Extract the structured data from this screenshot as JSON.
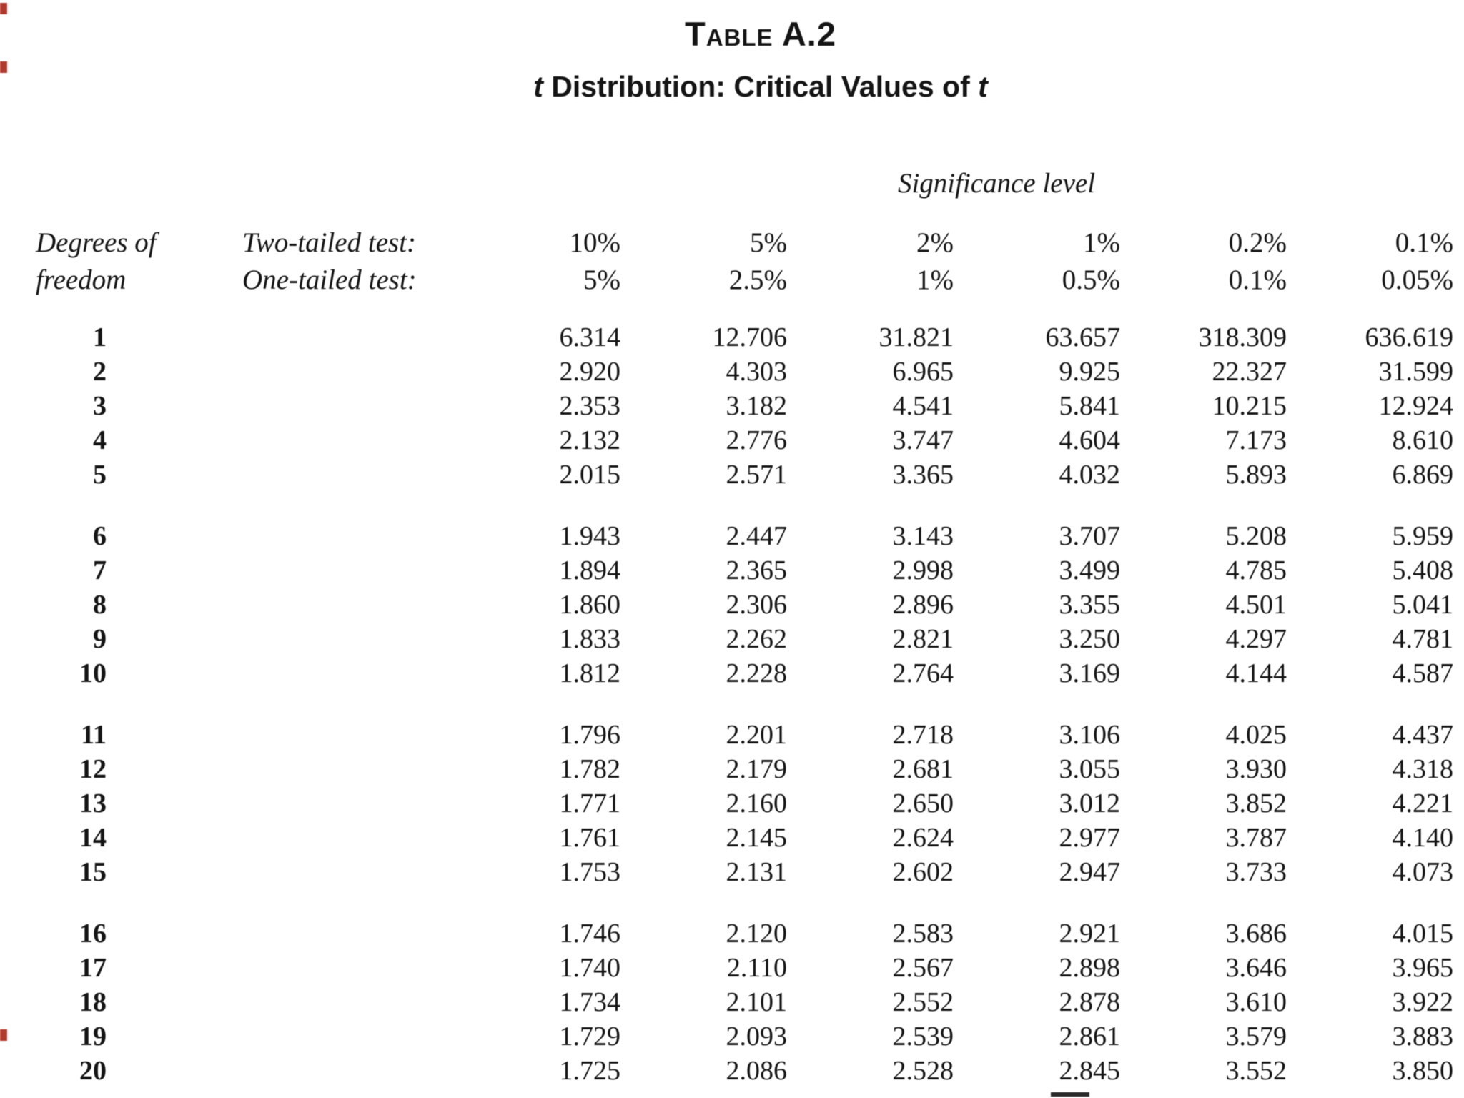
{
  "page": {
    "title": "Table A.2",
    "subtitle": {
      "t_lead": "t",
      "body": " Distribution: Critical Values of ",
      "t_trail": "t"
    },
    "significance_label": "Significance level"
  },
  "header": {
    "dof_line1": "Degrees of",
    "dof_line2": "freedom",
    "two_tailed_label": "Two-tailed test:",
    "one_tailed_label": "One-tailed test:",
    "two_tailed_levels": [
      "10%",
      "5%",
      "2%",
      "1%",
      "0.2%",
      "0.1%"
    ],
    "one_tailed_levels": [
      "5%",
      "2.5%",
      "1%",
      "0.5%",
      "0.1%",
      "0.05%"
    ]
  },
  "table": {
    "rows": [
      {
        "df": "1",
        "values": [
          "6.314",
          "12.706",
          "31.821",
          "63.657",
          "318.309",
          "636.619"
        ]
      },
      {
        "df": "2",
        "values": [
          "2.920",
          "4.303",
          "6.965",
          "9.925",
          "22.327",
          "31.599"
        ]
      },
      {
        "df": "3",
        "values": [
          "2.353",
          "3.182",
          "4.541",
          "5.841",
          "10.215",
          "12.924"
        ]
      },
      {
        "df": "4",
        "values": [
          "2.132",
          "2.776",
          "3.747",
          "4.604",
          "7.173",
          "8.610"
        ]
      },
      {
        "df": "5",
        "values": [
          "2.015",
          "2.571",
          "3.365",
          "4.032",
          "5.893",
          "6.869"
        ]
      },
      {
        "df": "6",
        "values": [
          "1.943",
          "2.447",
          "3.143",
          "3.707",
          "5.208",
          "5.959"
        ]
      },
      {
        "df": "7",
        "values": [
          "1.894",
          "2.365",
          "2.998",
          "3.499",
          "4.785",
          "5.408"
        ]
      },
      {
        "df": "8",
        "values": [
          "1.860",
          "2.306",
          "2.896",
          "3.355",
          "4.501",
          "5.041"
        ]
      },
      {
        "df": "9",
        "values": [
          "1.833",
          "2.262",
          "2.821",
          "3.250",
          "4.297",
          "4.781"
        ]
      },
      {
        "df": "10",
        "values": [
          "1.812",
          "2.228",
          "2.764",
          "3.169",
          "4.144",
          "4.587"
        ]
      },
      {
        "df": "11",
        "values": [
          "1.796",
          "2.201",
          "2.718",
          "3.106",
          "4.025",
          "4.437"
        ]
      },
      {
        "df": "12",
        "values": [
          "1.782",
          "2.179",
          "2.681",
          "3.055",
          "3.930",
          "4.318"
        ]
      },
      {
        "df": "13",
        "values": [
          "1.771",
          "2.160",
          "2.650",
          "3.012",
          "3.852",
          "4.221"
        ]
      },
      {
        "df": "14",
        "values": [
          "1.761",
          "2.145",
          "2.624",
          "2.977",
          "3.787",
          "4.140"
        ]
      },
      {
        "df": "15",
        "values": [
          "1.753",
          "2.131",
          "2.602",
          "2.947",
          "3.733",
          "4.073"
        ]
      },
      {
        "df": "16",
        "values": [
          "1.746",
          "2.120",
          "2.583",
          "2.921",
          "3.686",
          "4.015"
        ]
      },
      {
        "df": "17",
        "values": [
          "1.740",
          "2.110",
          "2.567",
          "2.898",
          "3.646",
          "3.965"
        ]
      },
      {
        "df": "18",
        "values": [
          "1.734",
          "2.101",
          "2.552",
          "2.878",
          "3.610",
          "3.922"
        ]
      },
      {
        "df": "19",
        "values": [
          "1.729",
          "2.093",
          "2.539",
          "2.861",
          "3.579",
          "3.883"
        ]
      },
      {
        "df": "20",
        "values": [
          "1.725",
          "2.086",
          "2.528",
          "2.845",
          "3.552",
          "3.850"
        ]
      }
    ]
  },
  "artifacts": {
    "edge_mark_color": "#b03a2e",
    "bottom_dash_color": "#2a2a2a"
  },
  "text_color": "#141414"
}
